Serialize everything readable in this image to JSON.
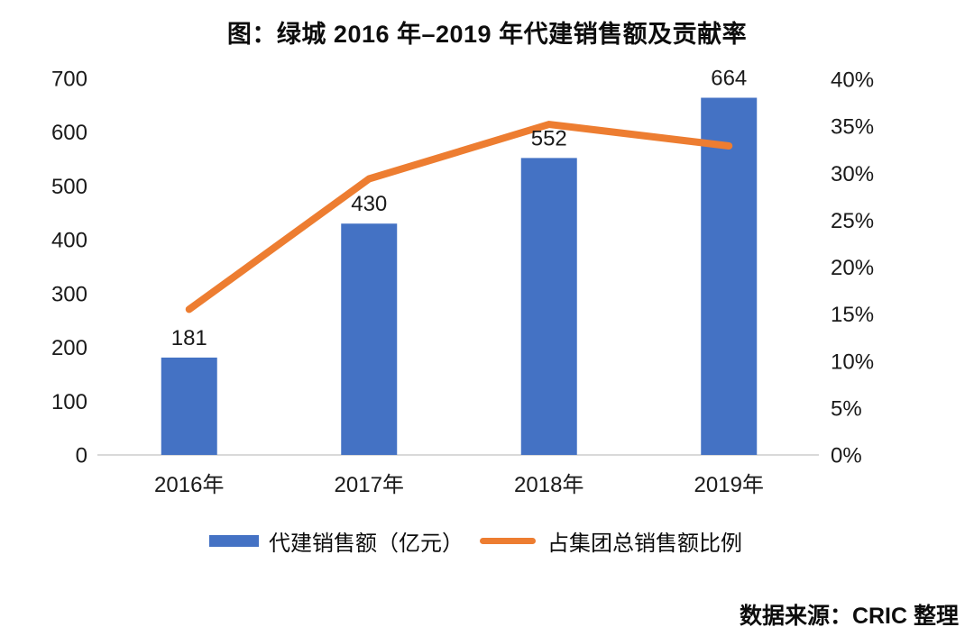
{
  "title": "图：绿城 2016 年–2019 年代建销售额及贡献率",
  "source": "数据来源：CRIC 整理",
  "colors": {
    "bar": "#4472C4",
    "line": "#ED7D31",
    "axis_line": "#D9D9D9",
    "text": "#1A1A1A"
  },
  "legend": {
    "items": [
      {
        "label": "代建销售额（亿元）",
        "swatch": "bar-swatch"
      },
      {
        "label": "占集团总销售额比例",
        "swatch": "line-swatch"
      }
    ]
  },
  "chart_data": {
    "type": "bar",
    "subtype": "combo-bar-line-dual-axis",
    "title": "图：绿城 2016 年–2019 年代建销售额及贡献率",
    "categories": [
      "2016年",
      "2017年",
      "2018年",
      "2019年"
    ],
    "series": [
      {
        "name": "代建销售额（亿元）",
        "type": "bar",
        "axis": "left",
        "color": "#4472C4",
        "values": [
          181,
          430,
          552,
          664
        ],
        "data_labels": [
          "181",
          "430",
          "552",
          "664"
        ]
      },
      {
        "name": "占集团总销售额比例",
        "type": "line",
        "axis": "right",
        "color": "#ED7D31",
        "values_percent": [
          15.5,
          29.4,
          35.2,
          32.9
        ]
      }
    ],
    "left_axis": {
      "min": 0,
      "max": 700,
      "step": 100,
      "ticks": [
        "700",
        "600",
        "500",
        "400",
        "300",
        "200",
        "100",
        "0"
      ]
    },
    "right_axis": {
      "min_percent": 0,
      "max_percent": 40,
      "step_percent": 5,
      "ticks": [
        "40%",
        "35%",
        "30%",
        "25%",
        "20%",
        "15%",
        "10%",
        "5%",
        "0%"
      ]
    },
    "grid": false,
    "legend_position": "bottom",
    "xlabel": "",
    "ylabel_left": "",
    "ylabel_right": ""
  }
}
